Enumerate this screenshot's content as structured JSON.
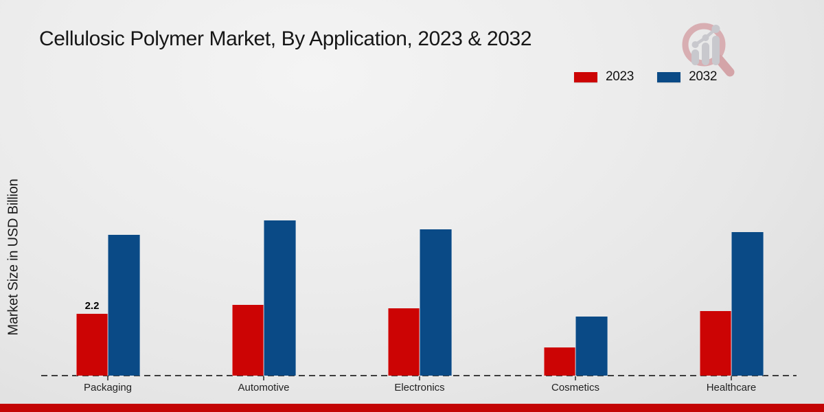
{
  "chart_data": {
    "type": "bar",
    "title": "Cellulosic Polymer Market, By Application, 2023 & 2032",
    "ylabel": "Market Size in USD Billion",
    "xlabel": "",
    "categories": [
      "Packaging",
      "Automotive",
      "Electronics",
      "Cosmetics",
      "Healthcare"
    ],
    "series": [
      {
        "name": "2023",
        "color": "#cc0404",
        "values": [
          2.2,
          2.5,
          2.4,
          1.0,
          2.3
        ]
      },
      {
        "name": "2032",
        "color": "#0a4a86",
        "values": [
          5.0,
          5.5,
          5.2,
          2.1,
          5.1
        ]
      }
    ],
    "value_labels": {
      "series_name": "2023",
      "labels": [
        "2.2",
        "",
        "",
        "",
        ""
      ]
    },
    "legend_position": "top-right",
    "grid": false,
    "ylim": [
      0,
      6
    ],
    "baseline_style": "dashed",
    "y_axis_ticks_visible": false
  },
  "branding": {
    "watermark_icon": "magnifier-growth-chart-logo",
    "footer_bar_color": "#c30404",
    "watermark_ring_color": "#d8aeb2",
    "watermark_bar_color": "#c8c8cd"
  }
}
